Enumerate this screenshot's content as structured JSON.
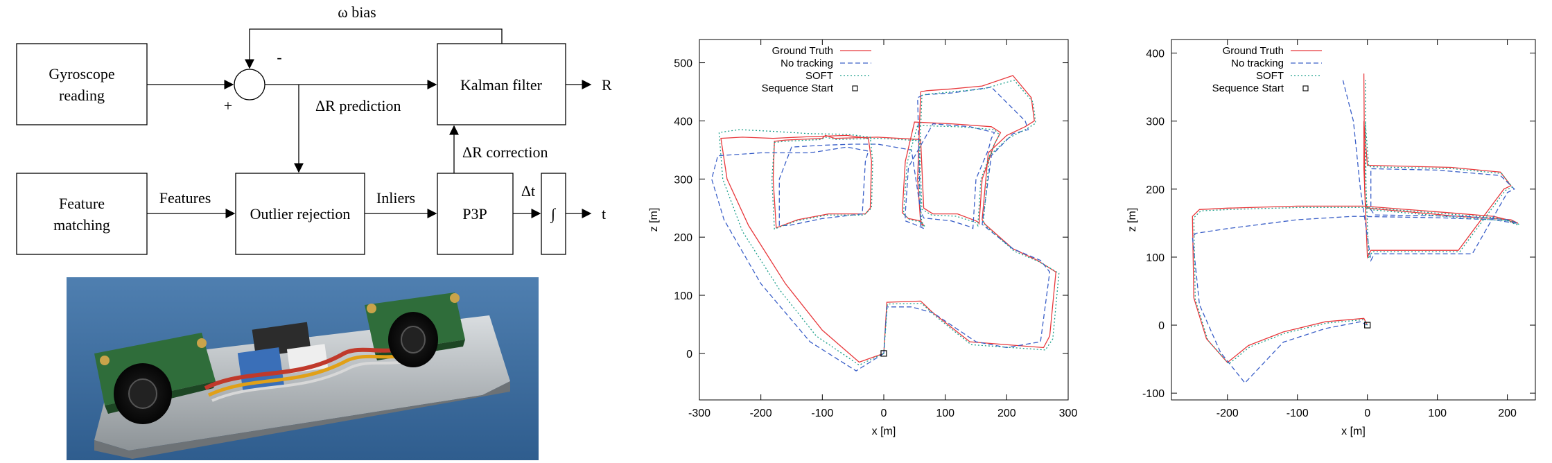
{
  "diagram": {
    "nodes": {
      "gyro": [
        "Gyroscope",
        "reading"
      ],
      "feature": [
        "Feature",
        "matching"
      ],
      "outlier": "Outlier rejection",
      "kalman": "Kalman filter",
      "p3p": "P3P",
      "integrator": "∫"
    },
    "labels": {
      "omega_bias": "ω bias",
      "minus": "-",
      "plus": "+",
      "dr_prediction": "ΔR prediction",
      "dr_correction": "ΔR correction",
      "features": "Features",
      "inliers": "Inliers",
      "dt": "Δt",
      "r_out": "R",
      "t_out": "t"
    }
  },
  "chart_data": [
    {
      "type": "line",
      "xlabel": "x [m]",
      "ylabel": "z [m]",
      "xlim": [
        -300,
        300
      ],
      "ylim": [
        -80,
        540
      ],
      "xticks": [
        -300,
        -200,
        -100,
        0,
        100,
        200,
        300
      ],
      "yticks": [
        0,
        100,
        200,
        300,
        400,
        500
      ],
      "legend_position": "top-left",
      "series": [
        {
          "name": "Ground Truth",
          "color": "#e8383b",
          "dash": "solid",
          "x": [
            0,
            -40,
            -100,
            -160,
            -220,
            -255,
            -265,
            -230,
            -180,
            -120,
            -60,
            -25,
            -20,
            -22,
            -30,
            -90,
            -140,
            -175,
            -180,
            -178,
            -160,
            -100,
            -95,
            -80,
            -10,
            60,
            65,
            80,
            120,
            150,
            155,
            155,
            160,
            180,
            185,
            190,
            175,
            110,
            50,
            35,
            30,
            40,
            60,
            65,
            60,
            55,
            60,
            70,
            110,
            160,
            210,
            240,
            245,
            230,
            200,
            170,
            160,
            165,
            210,
            250,
            280,
            270,
            260,
            140,
            80,
            60,
            5,
            0,
            0
          ],
          "y": [
            0,
            -15,
            40,
            120,
            220,
            300,
            370,
            372,
            370,
            373,
            375,
            370,
            330,
            250,
            240,
            240,
            230,
            216,
            300,
            365,
            367,
            370,
            375,
            370,
            372,
            368,
            250,
            240,
            240,
            228,
            225,
            222,
            300,
            360,
            370,
            380,
            390,
            395,
            398,
            330,
            242,
            232,
            228,
            220,
            223,
            300,
            450,
            452,
            455,
            460,
            478,
            440,
            400,
            390,
            375,
            345,
            230,
            222,
            180,
            160,
            140,
            30,
            10,
            20,
            70,
            90,
            88,
            0,
            0
          ]
        },
        {
          "name": "No tracking",
          "color": "#3a5fc8",
          "dash": "dashed",
          "x": [
            0,
            -45,
            -120,
            -200,
            -260,
            -280,
            -270,
            -200,
            -120,
            -60,
            -25,
            -30,
            -35,
            -100,
            -155,
            -170,
            -170,
            -150,
            -100,
            -50,
            -10,
            45,
            60,
            65,
            110,
            140,
            145,
            150,
            170,
            175,
            180,
            140,
            80,
            40,
            35,
            35,
            50,
            65,
            60,
            55,
            65,
            110,
            175,
            230,
            235,
            210,
            175,
            160,
            210,
            255,
            270,
            255,
            200,
            150,
            80,
            45,
            5,
            0
          ],
          "y": [
            0,
            -30,
            20,
            120,
            230,
            300,
            340,
            345,
            345,
            355,
            348,
            330,
            240,
            232,
            220,
            220,
            300,
            355,
            358,
            360,
            360,
            350,
            245,
            233,
            228,
            218,
            215,
            300,
            350,
            370,
            380,
            390,
            395,
            320,
            240,
            228,
            222,
            215,
            220,
            440,
            445,
            448,
            458,
            400,
            385,
            378,
            340,
            222,
            180,
            160,
            140,
            20,
            10,
            20,
            70,
            80,
            80,
            0
          ]
        },
        {
          "name": "SOFT",
          "color": "#1a9f8a",
          "dash": "dotted",
          "x": [
            0,
            -40,
            -110,
            -170,
            -230,
            -262,
            -268,
            -235,
            -180,
            -120,
            -60,
            -22,
            -18,
            -20,
            -32,
            -92,
            -142,
            -178,
            -182,
            -178,
            -160,
            -102,
            -95,
            -78,
            -8,
            58,
            62,
            78,
            118,
            148,
            152,
            153,
            158,
            178,
            183,
            188,
            180,
            120,
            55,
            38,
            32,
            42,
            62,
            67,
            62,
            57,
            62,
            72,
            112,
            162,
            212,
            243,
            247,
            232,
            202,
            172,
            162,
            167,
            212,
            252,
            285,
            275,
            263,
            142,
            82,
            62,
            6,
            0,
            0
          ],
          "y": [
            0,
            -20,
            30,
            110,
            210,
            300,
            380,
            385,
            382,
            378,
            377,
            372,
            330,
            250,
            238,
            238,
            228,
            214,
            300,
            363,
            365,
            368,
            372,
            368,
            370,
            366,
            248,
            238,
            236,
            226,
            222,
            220,
            300,
            356,
            366,
            376,
            385,
            390,
            392,
            328,
            240,
            230,
            226,
            218,
            220,
            300,
            444,
            446,
            450,
            455,
            470,
            432,
            396,
            386,
            370,
            340,
            226,
            218,
            176,
            158,
            138,
            25,
            6,
            15,
            66,
            86,
            85,
            0,
            0
          ]
        },
        {
          "name": "Sequence Start",
          "color": "#000000",
          "marker": "square",
          "x": [
            0
          ],
          "y": [
            0
          ]
        }
      ]
    },
    {
      "type": "line",
      "xlabel": "x [m]",
      "ylabel": "z [m]",
      "xlim": [
        -280,
        240
      ],
      "ylim": [
        -110,
        420
      ],
      "xticks": [
        -200,
        -100,
        0,
        100,
        200
      ],
      "yticks": [
        -100,
        0,
        100,
        200,
        300,
        400
      ],
      "legend_position": "top-left",
      "series": [
        {
          "name": "Ground Truth",
          "color": "#e8383b",
          "dash": "solid",
          "x": [
            0,
            -5,
            -60,
            -120,
            -170,
            -200,
            -230,
            -248,
            -250,
            -240,
            -200,
            -100,
            -5,
            120,
            180,
            200,
            210,
            215,
            205,
            130,
            0,
            -3,
            -5,
            -5,
            0,
            120,
            190,
            205,
            195,
            130,
            5,
            0,
            -4,
            -5
          ],
          "y": [
            0,
            10,
            5,
            -10,
            -30,
            -55,
            -20,
            40,
            160,
            170,
            172,
            175,
            175,
            165,
            160,
            155,
            150,
            150,
            155,
            160,
            172,
            180,
            230,
            300,
            235,
            232,
            225,
            205,
            200,
            110,
            110,
            100,
            200,
            370
          ]
        },
        {
          "name": "No tracking",
          "color": "#3a5fc8",
          "dash": "dashed",
          "x": [
            0,
            -10,
            -60,
            -120,
            -175,
            -210,
            -240,
            -250,
            -245,
            -200,
            -100,
            -20,
            100,
            180,
            210,
            215,
            200,
            140,
            10,
            5,
            5,
            100,
            190,
            210,
            200,
            150,
            10,
            5,
            -10,
            -20,
            -35
          ],
          "y": [
            0,
            5,
            -5,
            -25,
            -85,
            -40,
            30,
            130,
            135,
            142,
            155,
            160,
            158,
            155,
            150,
            150,
            155,
            160,
            162,
            170,
            230,
            228,
            220,
            200,
            195,
            105,
            105,
            95,
            200,
            300,
            360
          ]
        },
        {
          "name": "SOFT",
          "color": "#1a9f8a",
          "dash": "dotted",
          "x": [
            0,
            -5,
            -58,
            -118,
            -168,
            -198,
            -228,
            -246,
            -248,
            -238,
            -198,
            -98,
            -3,
            122,
            182,
            202,
            212,
            217,
            207,
            132,
            2,
            -1,
            -3,
            -3,
            2,
            122,
            192,
            207,
            197,
            132,
            7,
            2,
            -2,
            -3
          ],
          "y": [
            0,
            8,
            3,
            -12,
            -32,
            -57,
            -22,
            38,
            158,
            168,
            170,
            173,
            173,
            163,
            158,
            153,
            148,
            148,
            153,
            158,
            170,
            178,
            228,
            298,
            233,
            230,
            223,
            203,
            198,
            108,
            108,
            98,
            198,
            360
          ]
        },
        {
          "name": "Sequence Start",
          "color": "#000000",
          "marker": "square",
          "x": [
            0
          ],
          "y": [
            0
          ]
        }
      ]
    }
  ]
}
